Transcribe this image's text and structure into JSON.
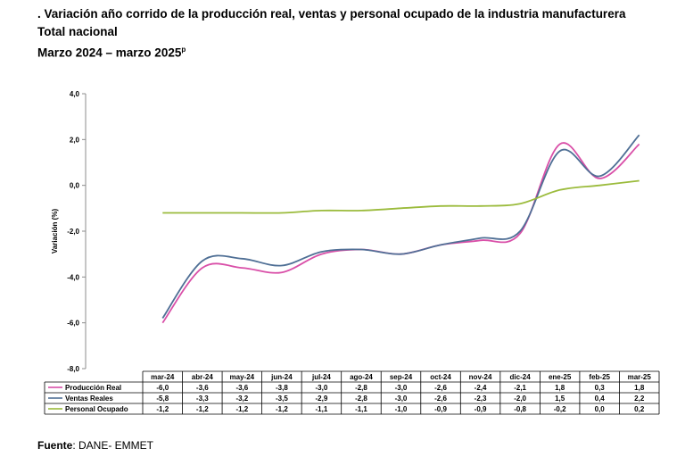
{
  "header": {
    "title_prefix": ".",
    "title": "Variación año corrido de la producción real, ventas y personal ocupado de la industria manufacturera",
    "subtitle": "Total nacional",
    "period": "Marzo 2024 – marzo 2025",
    "period_mark": "p"
  },
  "footer": {
    "source_label": "Fuente",
    "source_text": ": DANE- EMMET"
  },
  "colors": {
    "produccion": "#d94fa8",
    "ventas": "#4f6f95",
    "personal": "#9bbb3c",
    "table_border": "#000000"
  },
  "chart_data": {
    "type": "line",
    "categories": [
      "mar-24",
      "abr-24",
      "may-24",
      "jun-24",
      "jul-24",
      "ago-24",
      "sep-24",
      "oct-24",
      "nov-24",
      "dic-24",
      "ene-25",
      "feb-25",
      "mar-25"
    ],
    "ylabel": "Variación (%)",
    "ylim": [
      -8.0,
      4.0
    ],
    "yticks": [
      "4,0",
      "2,0",
      "0,0",
      "-2,0",
      "-4,0",
      "-6,0",
      "-8,0"
    ],
    "ytick_values": [
      4,
      2,
      0,
      -2,
      -4,
      -6,
      -8
    ],
    "grid": false,
    "legend": "data-table",
    "series": [
      {
        "name": "Producción Real",
        "color_key": "produccion",
        "values": [
          -6.0,
          -3.6,
          -3.6,
          -3.8,
          -3.0,
          -2.8,
          -3.0,
          -2.6,
          -2.4,
          -2.1,
          1.8,
          0.3,
          1.8
        ],
        "labels": [
          "-6,0",
          "-3,6",
          "-3,6",
          "-3,8",
          "-3,0",
          "-2,8",
          "-3,0",
          "-2,6",
          "-2,4",
          "-2,1",
          "1,8",
          "0,3",
          "1,8"
        ]
      },
      {
        "name": "Ventas Reales",
        "color_key": "ventas",
        "values": [
          -5.8,
          -3.3,
          -3.2,
          -3.5,
          -2.9,
          -2.8,
          -3.0,
          -2.6,
          -2.3,
          -2.0,
          1.5,
          0.4,
          2.2
        ],
        "labels": [
          "-5,8",
          "-3,3",
          "-3,2",
          "-3,5",
          "-2,9",
          "-2,8",
          "-3,0",
          "-2,6",
          "-2,3",
          "-2,0",
          "1,5",
          "0,4",
          "2,2"
        ]
      },
      {
        "name": "Personal Ocupado",
        "color_key": "personal",
        "values": [
          -1.2,
          -1.2,
          -1.2,
          -1.2,
          -1.1,
          -1.1,
          -1.0,
          -0.9,
          -0.9,
          -0.8,
          -0.2,
          0.0,
          0.2
        ],
        "labels": [
          "-1,2",
          "-1,2",
          "-1,2",
          "-1,2",
          "-1,1",
          "-1,1",
          "-1,0",
          "-0,9",
          "-0,9",
          "-0,8",
          "-0,2",
          "0,0",
          "0,2"
        ]
      }
    ]
  }
}
